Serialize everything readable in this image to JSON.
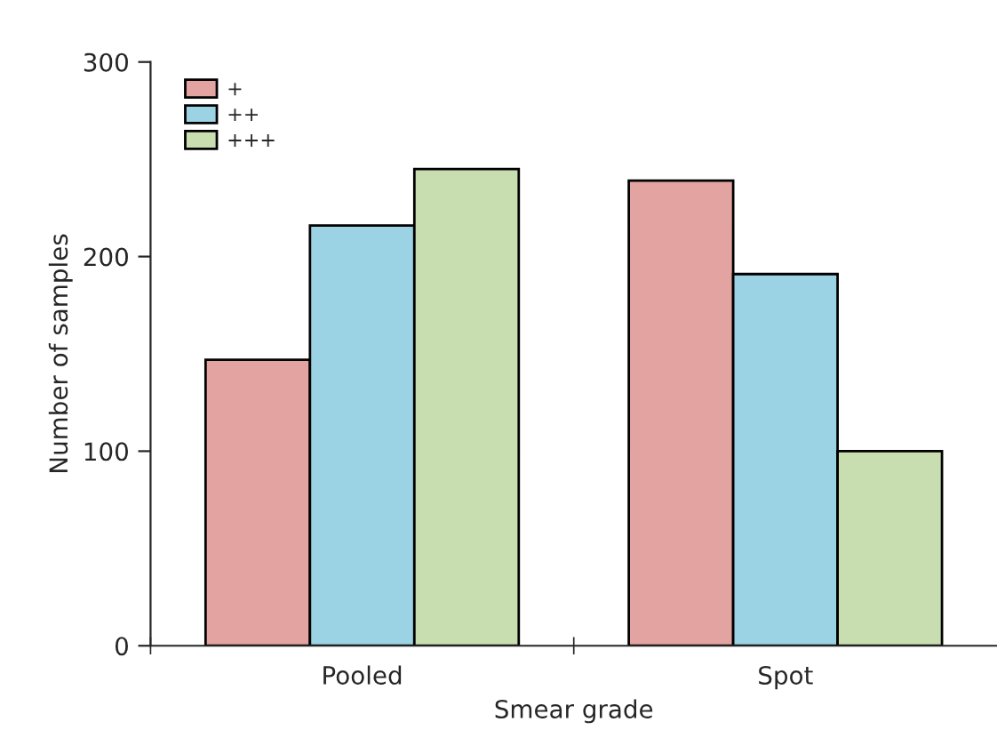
{
  "chart_data": {
    "type": "bar",
    "xlabel": "Smear grade",
    "ylabel": "Number of samples",
    "categories": [
      "Pooled",
      "Spot"
    ],
    "series": [
      {
        "name": "+",
        "color": "#e2a3a1",
        "values": [
          147,
          239
        ]
      },
      {
        "name": "++",
        "color": "#9cd3e4",
        "values": [
          216,
          191
        ]
      },
      {
        "name": "+++",
        "color": "#c9deb0",
        "values": [
          245,
          100
        ]
      }
    ],
    "ylim": [
      0,
      300
    ],
    "yticks": [
      0,
      100,
      200,
      300
    ],
    "grid": false,
    "legend": "top left"
  }
}
